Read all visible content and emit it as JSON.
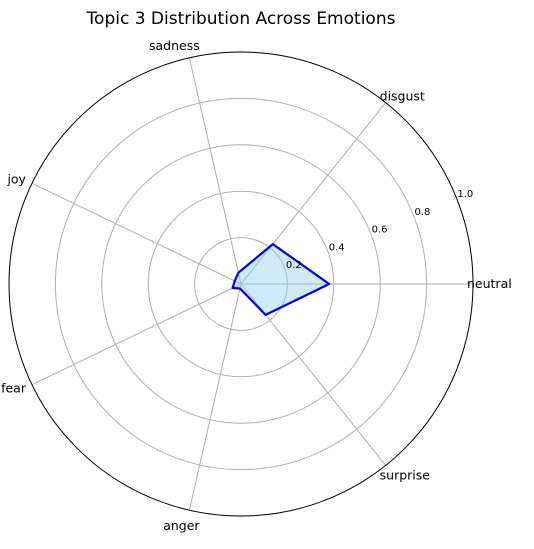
{
  "chart_data": {
    "type": "radar",
    "title": "Topic 3 Distribution Across Emotions",
    "categories": [
      "neutral",
      "disgust",
      "sadness",
      "joy",
      "fear",
      "anger",
      "surprise"
    ],
    "series": [
      {
        "values": [
          0.38,
          0.22,
          0.05,
          0.03,
          0.04,
          0.02,
          0.17
        ]
      }
    ],
    "rlim": [
      0,
      1.0
    ],
    "rticks": [
      "0.2",
      "0.4",
      "0.6",
      "0.8",
      "1.0"
    ],
    "grid": true,
    "colors": {
      "line": "#0000e6",
      "fill": "#87ceeb",
      "grid": "#b0b0b0",
      "frame": "#000000"
    }
  }
}
